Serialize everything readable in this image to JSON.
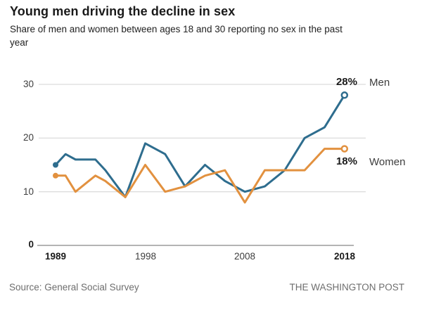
{
  "footer": {
    "source": "Source: General Social Survey",
    "credit": "THE WASHINGTON POST"
  },
  "colors": {
    "men_line": "#2e6d8e",
    "women_line": "#e2913f",
    "gridline": "#dcdcdc",
    "axis_line": "#9c9c9c",
    "tick_text": "#3d3d3d",
    "emphasis_text": "#1a1a1a",
    "muted_text": "#6e6e6e"
  },
  "chart_data": {
    "type": "line",
    "title": "Young men driving the decline in sex",
    "subtitle": "Share of men and women between ages 18 and 30 reporting no sex in the past year",
    "x": [
      1989,
      1990,
      1991,
      1993,
      1994,
      1996,
      1998,
      2000,
      2002,
      2004,
      2006,
      2008,
      2010,
      2012,
      2014,
      2016,
      2018
    ],
    "series": [
      {
        "name": "Men",
        "color": "#2e6d8e",
        "end_label": "28%",
        "values": [
          15,
          17,
          16,
          16,
          14,
          9,
          19,
          17,
          11,
          15,
          12,
          10,
          11,
          14,
          20,
          22,
          28
        ]
      },
      {
        "name": "Women",
        "color": "#e2913f",
        "end_label": "18%",
        "values": [
          13,
          13,
          10,
          13,
          12,
          9,
          15,
          10,
          11,
          13,
          14,
          8,
          14,
          14,
          14,
          18,
          18
        ]
      }
    ],
    "xlabel": "",
    "ylabel": "",
    "ylim": [
      0,
      32
    ],
    "xlim": [
      1989,
      2018
    ],
    "yticks": [
      0,
      10,
      20,
      30
    ],
    "ytick_labels": [
      "0",
      "10",
      "20",
      "30"
    ],
    "xticks": [
      1989,
      1998,
      2008,
      2018
    ],
    "xtick_labels": [
      "1989",
      "1998",
      "2008",
      "2018"
    ],
    "grid": "horizontal",
    "legend_position": "right-of-line-ends",
    "marker_start": "filled-dot",
    "marker_end": "open-circle"
  }
}
